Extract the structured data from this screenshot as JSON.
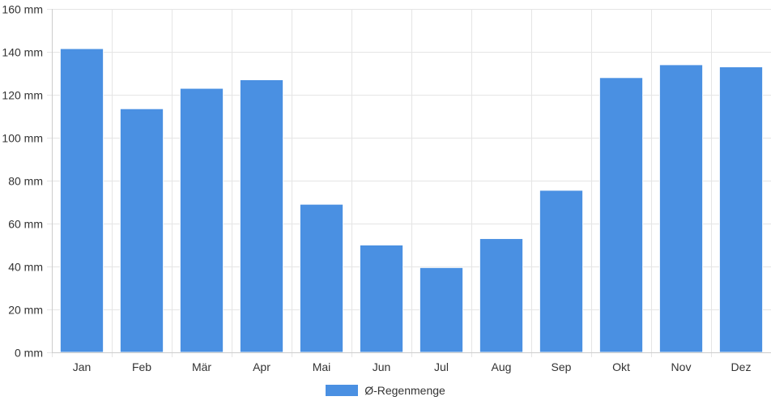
{
  "chart_data": {
    "type": "bar",
    "categories": [
      "Jan",
      "Feb",
      "Mär",
      "Apr",
      "Mai",
      "Jun",
      "Jul",
      "Aug",
      "Sep",
      "Okt",
      "Nov",
      "Dez"
    ],
    "series": [
      {
        "name": "Ø-Regenmenge",
        "values": [
          141.5,
          113.5,
          123,
          127,
          69,
          50,
          39.5,
          53,
          75.5,
          128,
          134,
          133
        ]
      }
    ],
    "ylim": [
      0,
      160
    ],
    "yticks": [
      0,
      20,
      40,
      60,
      80,
      100,
      120,
      140,
      160
    ],
    "yunit": "mm",
    "grid": true,
    "legend_position": "bottom",
    "colors": {
      "bar": "#4a90e2",
      "bar_border": "#ffffff",
      "grid": "#e5e5e5",
      "axis": "#cccccc"
    }
  }
}
